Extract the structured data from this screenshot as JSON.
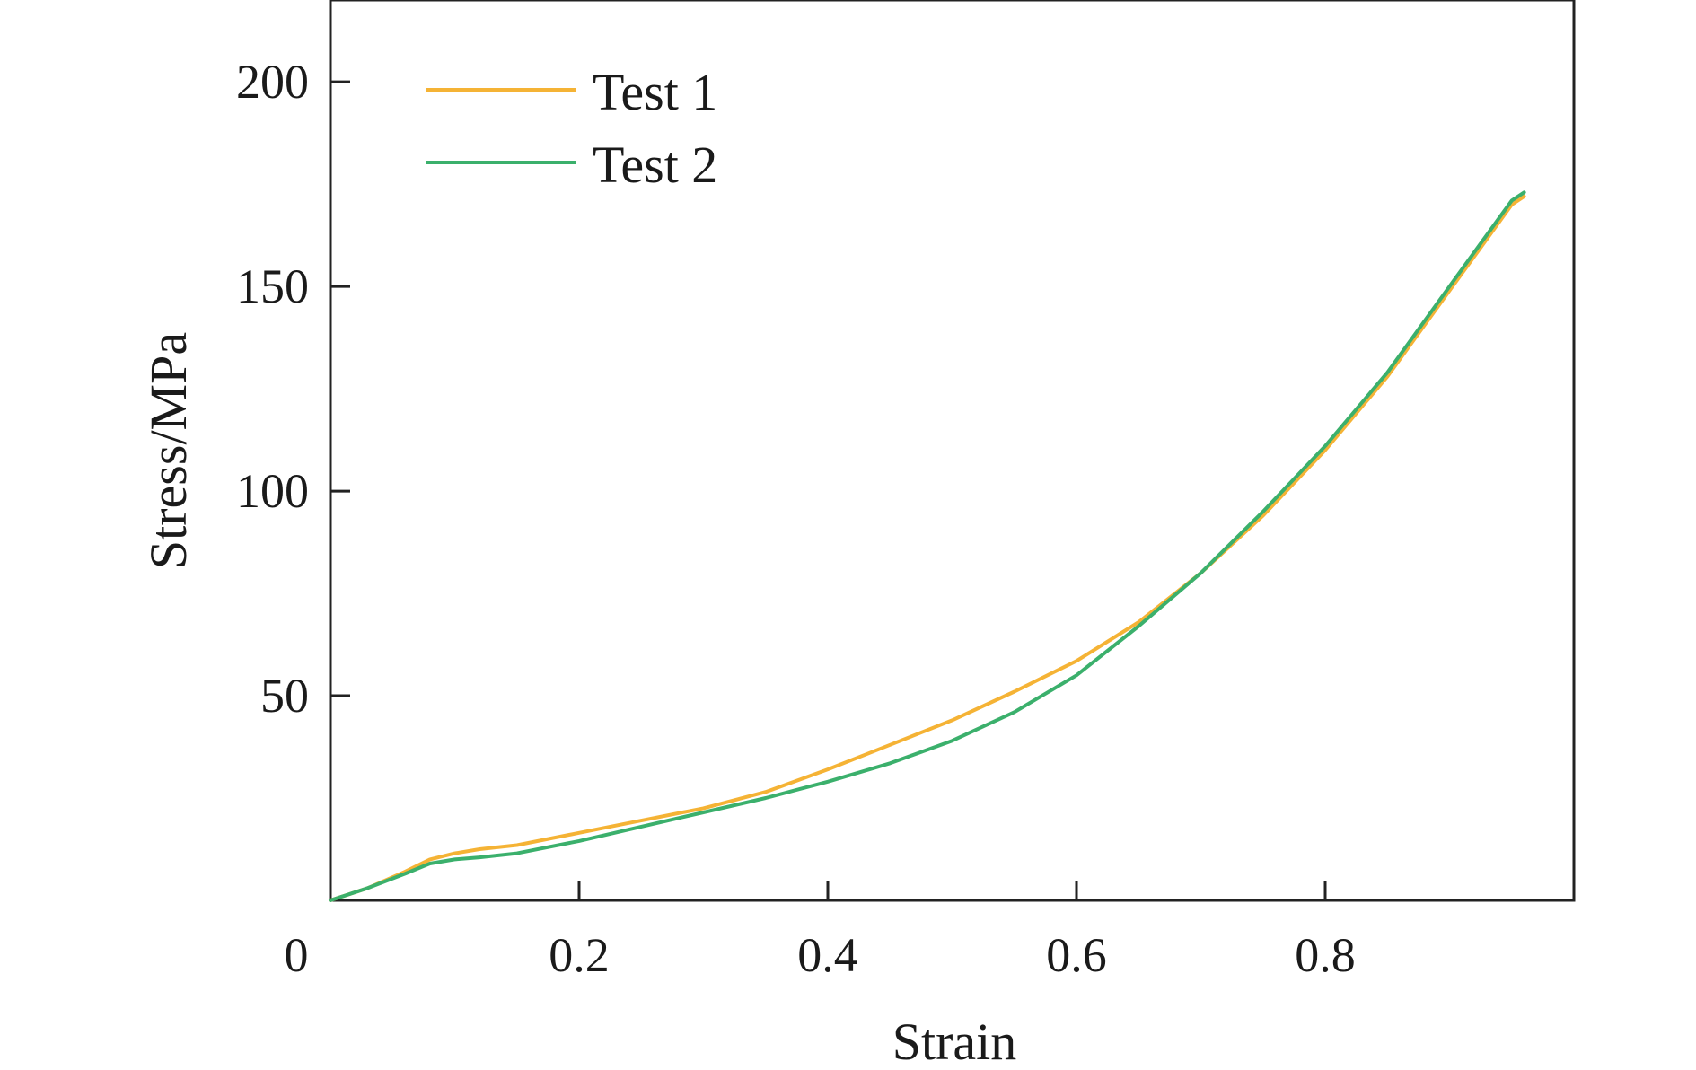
{
  "chart_data": {
    "type": "line",
    "title": "",
    "xlabel": "Strain",
    "ylabel": "Stress/MPa",
    "xlim": [
      0,
      1.0
    ],
    "ylim": [
      0,
      220
    ],
    "x_ticks": [
      0.2,
      0.4,
      0.6,
      0.8
    ],
    "x_tick_labels": [
      "0.2",
      "0.4",
      "0.6",
      "0.8"
    ],
    "y_ticks": [
      50,
      100,
      150,
      200
    ],
    "y_tick_labels": [
      "50",
      "100",
      "150",
      "200"
    ],
    "origin_label": "0",
    "grid": false,
    "legend_position": "top-left",
    "series": [
      {
        "name": "Test 1",
        "color": "#F5B335",
        "x": [
          0.0,
          0.03,
          0.06,
          0.08,
          0.1,
          0.12,
          0.15,
          0.2,
          0.25,
          0.3,
          0.35,
          0.4,
          0.45,
          0.5,
          0.55,
          0.6,
          0.65,
          0.7,
          0.75,
          0.8,
          0.85,
          0.9,
          0.95,
          0.96
        ],
        "y": [
          0,
          3,
          7,
          10,
          11.5,
          12.5,
          13.5,
          16.5,
          19.5,
          22.5,
          26.5,
          32,
          38,
          44,
          51,
          58.5,
          68,
          80,
          94,
          110,
          128,
          149,
          170,
          172
        ]
      },
      {
        "name": "Test 2",
        "color": "#3BB06C",
        "x": [
          0.0,
          0.03,
          0.06,
          0.08,
          0.1,
          0.12,
          0.15,
          0.2,
          0.25,
          0.3,
          0.35,
          0.4,
          0.45,
          0.5,
          0.55,
          0.6,
          0.65,
          0.7,
          0.75,
          0.8,
          0.85,
          0.9,
          0.95,
          0.96
        ],
        "y": [
          0,
          3,
          6.5,
          9,
          10,
          10.5,
          11.5,
          14.5,
          18,
          21.5,
          25,
          29,
          33.5,
          39,
          46,
          55,
          67,
          80,
          95,
          111,
          129,
          150,
          171,
          173
        ]
      }
    ]
  }
}
